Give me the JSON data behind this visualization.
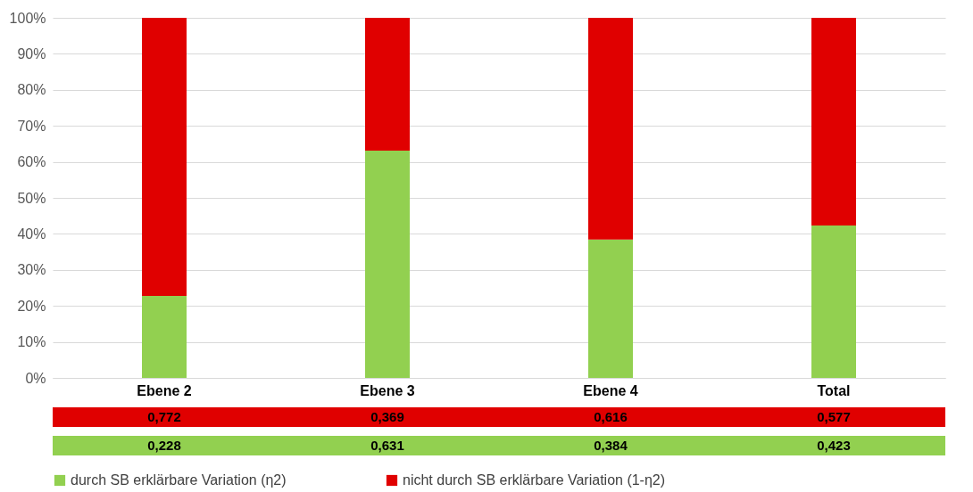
{
  "chart_data": {
    "type": "bar",
    "stacked": true,
    "categories": [
      "Ebene 2",
      "Ebene 3",
      "Ebene 4",
      "Total"
    ],
    "series": [
      {
        "name": "durch SB erklärbare Variation (η2)",
        "color": "#92d050",
        "values": [
          0.228,
          0.631,
          0.384,
          0.423
        ],
        "value_labels": [
          "0,228",
          "0,631",
          "0,384",
          "0,423"
        ]
      },
      {
        "name": "nicht durch SB erklärbare Variation (1-η2)",
        "color": "#e00000",
        "values": [
          0.772,
          0.369,
          0.616,
          0.577
        ],
        "value_labels": [
          "0,772",
          "0,369",
          "0,616",
          "0,577"
        ]
      }
    ],
    "ylim": [
      0,
      1
    ],
    "yticks": [
      {
        "value": 0,
        "label": "0%"
      },
      {
        "value": 0.1,
        "label": "10%"
      },
      {
        "value": 0.2,
        "label": "20%"
      },
      {
        "value": 0.3,
        "label": "30%"
      },
      {
        "value": 0.4,
        "label": "40%"
      },
      {
        "value": 0.5,
        "label": "50%"
      },
      {
        "value": 0.6,
        "label": "60%"
      },
      {
        "value": 0.7,
        "label": "70%"
      },
      {
        "value": 0.8,
        "label": "80%"
      },
      {
        "value": 0.9,
        "label": "90%"
      },
      {
        "value": 1,
        "label": "100%"
      }
    ],
    "grid": "y",
    "legend": "bottom"
  }
}
